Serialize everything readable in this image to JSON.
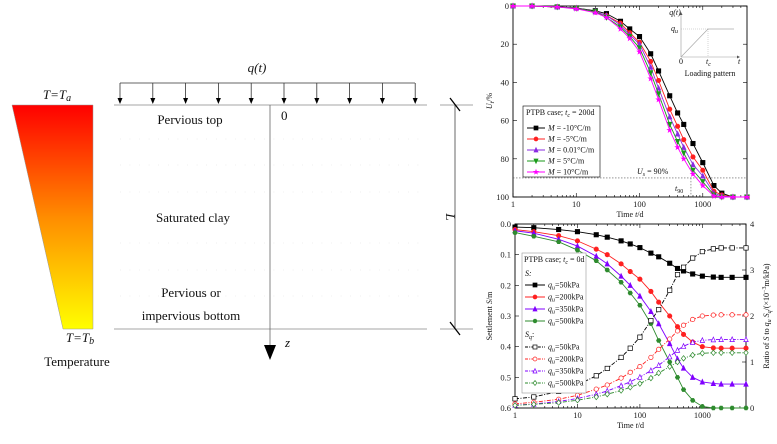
{
  "diagram": {
    "load_label": "q(t)",
    "top_temp": {
      "main": "T=T",
      "sub": "a"
    },
    "bottom_temp": {
      "main": "T=T",
      "sub": "b"
    },
    "temperature_label": "Temperature",
    "top_boundary": "Pervious top",
    "layer": "Saturated clay",
    "bottom_boundary_1": "Pervious or",
    "bottom_boundary_2": "impervious bottom",
    "origin": "0",
    "z_axis": "z",
    "thickness": "L",
    "colors": {
      "hot": "#ff0000",
      "cold": "#ffff00"
    }
  },
  "chart_data": [
    {
      "type": "line",
      "title": "",
      "xlabel": {
        "main": "Time ",
        "var": "t",
        "rest": "/d"
      },
      "ylabel": {
        "var": "U",
        "sub": "t",
        "rest": "/%"
      },
      "xscale": "log",
      "xlim": [
        1,
        5000
      ],
      "ylim": [
        0,
        100
      ],
      "y_inverted": true,
      "xticks": [
        "1",
        "10",
        "100",
        "1000"
      ],
      "yticks": [
        "0",
        "20",
        "40",
        "60",
        "80",
        "100"
      ],
      "legend": {
        "placement": "center-left",
        "title": {
          "main": "PTPB case; ",
          "var": "t",
          "sub": "c",
          "rest": " = 200d"
        }
      },
      "x": [
        1,
        2,
        5,
        10,
        20,
        30,
        50,
        70,
        100,
        150,
        200,
        300,
        400,
        500,
        700,
        1000,
        1500,
        2000,
        3000,
        5000
      ],
      "series": [
        {
          "name": " = -10°C/m",
          "var": "M",
          "color": "#000000",
          "marker": "square",
          "values": [
            0,
            0,
            0.5,
            1,
            2.5,
            4,
            8,
            12,
            16,
            25,
            34,
            47,
            56,
            62,
            72,
            82,
            94,
            98,
            100,
            100
          ]
        },
        {
          "name": " = -5°C/m",
          "var": "M",
          "color": "#ff2020",
          "marker": "circle",
          "values": [
            0,
            0,
            0.5,
            1,
            3,
            5,
            9,
            14,
            19,
            29,
            39,
            54,
            63,
            70,
            79,
            86,
            97,
            99,
            100,
            100
          ]
        },
        {
          "name": " =  0.01°C/m",
          "var": "M",
          "color": "#8a2be2",
          "marker": "triangle-up",
          "values": [
            0,
            0,
            0.5,
            1,
            3,
            5,
            10,
            15,
            20,
            32,
            43,
            58,
            67,
            74,
            83,
            89,
            98,
            99.5,
            100,
            100
          ]
        },
        {
          "name": " =  5°C/m",
          "var": "M",
          "color": "#1a9a1a",
          "marker": "triangle-down",
          "values": [
            0,
            0,
            0.5,
            1.2,
            3,
            6,
            11,
            16,
            22,
            35,
            46,
            62,
            71,
            77,
            86,
            92,
            99,
            100,
            100,
            100
          ]
        },
        {
          "name": " =  10°C/m",
          "var": "M",
          "color": "#ff00ff",
          "marker": "star",
          "values": [
            0,
            0,
            0.5,
            1.5,
            3.5,
            6,
            12,
            17,
            24,
            38,
            49,
            65,
            74,
            80,
            88,
            94,
            99.5,
            100,
            100,
            100
          ]
        }
      ],
      "annotations": {
        "ref_line_value": 90,
        "ref_label": {
          "var": "U",
          "sub": "s",
          "rest": " = 90%"
        },
        "t90_value": 650,
        "t90_label": {
          "var": "t",
          "sub": "90"
        }
      },
      "inset": {
        "title": "Loading pattern",
        "ylabel": "q(t)",
        "level": {
          "var": "q",
          "sub": "u"
        },
        "origin": "0",
        "tc": {
          "var": "t",
          "sub": "c"
        },
        "xlabel": "t"
      }
    },
    {
      "type": "line",
      "title": "",
      "xlabel": {
        "main": "Time ",
        "var": "t",
        "rest": "/d"
      },
      "ylabel": {
        "main": "Settlement ",
        "var": "S",
        "rest": "/m"
      },
      "y2label": {
        "main": "Ratio of ",
        "var": "S",
        "mid": " to ",
        "var2": "q",
        "sub2": "u",
        "mid2": "  ",
        "var3": "S",
        "sub3": "q",
        "rest": "/(×10",
        "sup": "−3",
        "rest2": "m/kPa)"
      },
      "xscale": "log",
      "xlim": [
        1,
        5000
      ],
      "ylim": [
        0,
        0.6
      ],
      "y_inverted": true,
      "y2lim": [
        0,
        4
      ],
      "xticks": [
        "1",
        "10",
        "100",
        "1000"
      ],
      "yticks": [
        "0.0",
        "0.1",
        "0.2",
        "0.3",
        "0.4",
        "0.5",
        "0.6"
      ],
      "y2ticks": [
        "0",
        "1",
        "2",
        "3",
        "4"
      ],
      "legend": {
        "placement": "center-left",
        "title": {
          "main": "PTPB case; ",
          "var": "t",
          "sub": "c",
          "rest": " = 0d"
        },
        "group1": "S:",
        "group2": {
          "var": "S",
          "sub": "q",
          "rest": ":"
        }
      },
      "x": [
        1,
        2,
        5,
        10,
        20,
        30,
        50,
        70,
        100,
        150,
        200,
        300,
        400,
        500,
        700,
        1000,
        1500,
        2000,
        3000,
        5000
      ],
      "series": [
        {
          "name": "=50kPa",
          "group": "S",
          "axis": "left",
          "color": "#000000",
          "marker": "square",
          "filled": true,
          "values": [
            0.01,
            0.012,
            0.018,
            0.025,
            0.035,
            0.043,
            0.055,
            0.065,
            0.077,
            0.095,
            0.107,
            0.128,
            0.145,
            0.153,
            0.163,
            0.17,
            0.173,
            0.174,
            0.174,
            0.174
          ]
        },
        {
          "name": "=200kPa",
          "group": "S",
          "axis": "left",
          "color": "#ff2020",
          "marker": "circle",
          "filled": true,
          "values": [
            0.018,
            0.025,
            0.038,
            0.055,
            0.082,
            0.1,
            0.13,
            0.155,
            0.18,
            0.22,
            0.255,
            0.3,
            0.335,
            0.36,
            0.385,
            0.4,
            0.404,
            0.405,
            0.405,
            0.405
          ]
        },
        {
          "name": "=350kPa",
          "group": "S",
          "axis": "left",
          "color": "#8000ff",
          "marker": "triangle-up",
          "filled": true,
          "values": [
            0.022,
            0.03,
            0.05,
            0.072,
            0.105,
            0.13,
            0.17,
            0.2,
            0.235,
            0.285,
            0.325,
            0.39,
            0.44,
            0.47,
            0.5,
            0.515,
            0.52,
            0.522,
            0.522,
            0.522
          ]
        },
        {
          "name": "=500kPa",
          "group": "S",
          "axis": "left",
          "color": "#2e8b2e",
          "marker": "hexagon",
          "filled": true,
          "values": [
            0.028,
            0.04,
            0.058,
            0.085,
            0.12,
            0.15,
            0.19,
            0.225,
            0.265,
            0.325,
            0.38,
            0.45,
            0.5,
            0.54,
            0.575,
            0.595,
            0.6,
            0.6,
            0.6,
            0.6
          ]
        },
        {
          "name": "=50kPa",
          "group": "Sq",
          "axis": "right",
          "color": "#000000",
          "marker": "square",
          "filled": false,
          "values": [
            0.2,
            0.24,
            0.36,
            0.5,
            0.7,
            0.86,
            1.1,
            1.3,
            1.54,
            1.9,
            2.14,
            2.56,
            2.9,
            3.06,
            3.26,
            3.4,
            3.46,
            3.48,
            3.48,
            3.48
          ]
        },
        {
          "name": "=200kPa",
          "group": "Sq",
          "axis": "right",
          "color": "#ff2020",
          "marker": "circle",
          "filled": false,
          "values": [
            0.09,
            0.125,
            0.19,
            0.275,
            0.41,
            0.5,
            0.65,
            0.775,
            0.9,
            1.1,
            1.275,
            1.5,
            1.675,
            1.8,
            1.925,
            2.0,
            2.02,
            2.025,
            2.025,
            2.025
          ]
        },
        {
          "name": "=350kPa",
          "group": "Sq",
          "axis": "right",
          "color": "#8000ff",
          "marker": "triangle-up",
          "filled": false,
          "values": [
            0.063,
            0.086,
            0.143,
            0.206,
            0.3,
            0.371,
            0.486,
            0.571,
            0.671,
            0.814,
            0.929,
            1.114,
            1.257,
            1.343,
            1.429,
            1.471,
            1.486,
            1.491,
            1.491,
            1.491
          ]
        },
        {
          "name": "=500kPa",
          "group": "Sq",
          "axis": "right",
          "color": "#2e8b2e",
          "marker": "diamond",
          "filled": false,
          "values": [
            0.056,
            0.08,
            0.116,
            0.17,
            0.24,
            0.3,
            0.38,
            0.45,
            0.53,
            0.65,
            0.76,
            0.9,
            1.0,
            1.08,
            1.15,
            1.19,
            1.2,
            1.2,
            1.2,
            1.2
          ]
        }
      ],
      "legend_var": {
        "var": "q",
        "sub": "u"
      }
    }
  ]
}
